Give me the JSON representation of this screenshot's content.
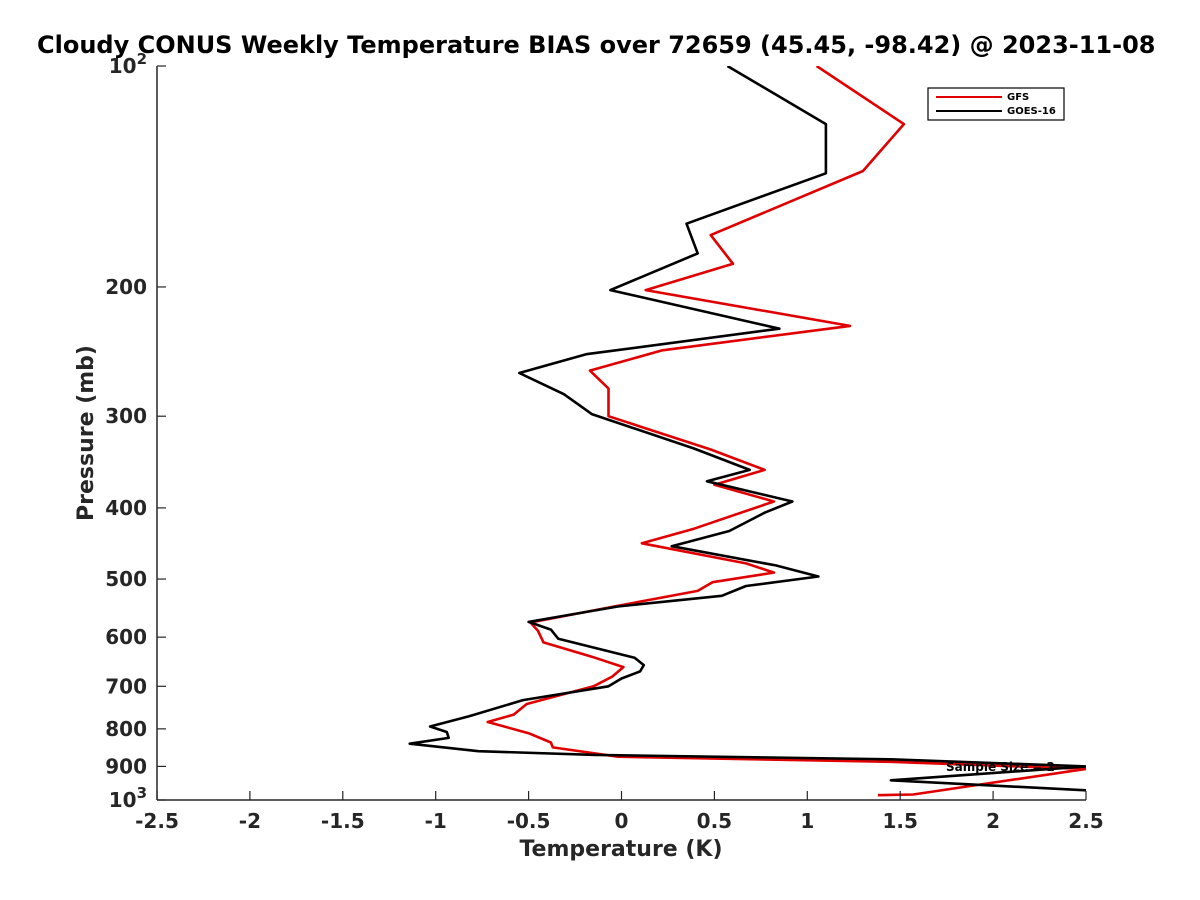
{
  "chart_data": {
    "type": "line",
    "title": "Cloudy CONUS Weekly Temperature BIAS over 72659 (45.45, -98.42) @ 2023-11-08",
    "xlabel": "Temperature (K)",
    "ylabel": "Pressure (mb)",
    "xlim": [
      -2.5,
      2.5
    ],
    "ylim": [
      100,
      1000
    ],
    "y_scale": "log",
    "y_reversed": true,
    "grid": false,
    "legend_position": "top-right",
    "x_ticks": [
      -2.5,
      -2,
      -1.5,
      -1,
      -0.5,
      0,
      0.5,
      1,
      1.5,
      2,
      2.5
    ],
    "x_tick_labels": [
      "-2.5",
      "-2",
      "-1.5",
      "-1",
      "-0.5",
      "0",
      "0.5",
      "1",
      "1.5",
      "2",
      "2.5"
    ],
    "y_ticks": [
      {
        "value": 100,
        "base": "10",
        "exp": "2"
      },
      {
        "value": 200,
        "label": "200"
      },
      {
        "value": 300,
        "label": "300"
      },
      {
        "value": 400,
        "label": "400"
      },
      {
        "value": 500,
        "label": "500"
      },
      {
        "value": 600,
        "label": "600"
      },
      {
        "value": 700,
        "label": "700"
      },
      {
        "value": 800,
        "label": "800"
      },
      {
        "value": 900,
        "label": "900"
      },
      {
        "value": 1000,
        "base": "10",
        "exp": "3"
      }
    ],
    "series": [
      {
        "name": "GFS",
        "color": "#e00000",
        "points": [
          [
            1.05,
            100
          ],
          [
            1.52,
            120
          ],
          [
            1.3,
            139
          ],
          [
            0.48,
            170
          ],
          [
            0.6,
            186
          ],
          [
            0.13,
            202
          ],
          [
            1.23,
            226
          ],
          [
            0.22,
            244
          ],
          [
            -0.17,
            260
          ],
          [
            -0.07,
            275
          ],
          [
            -0.07,
            300
          ],
          [
            0.48,
            333
          ],
          [
            0.77,
            355
          ],
          [
            0.5,
            372
          ],
          [
            0.82,
            392
          ],
          [
            0.39,
            427
          ],
          [
            0.11,
            447
          ],
          [
            0.67,
            476
          ],
          [
            0.82,
            490
          ],
          [
            0.49,
            505
          ],
          [
            0.41,
            519
          ],
          [
            -0.04,
            545
          ],
          [
            -0.49,
            573
          ],
          [
            -0.45,
            588
          ],
          [
            -0.42,
            610
          ],
          [
            -0.16,
            638
          ],
          [
            0.01,
            659
          ],
          [
            -0.05,
            679
          ],
          [
            -0.15,
            700
          ],
          [
            -0.51,
            740
          ],
          [
            -0.58,
            765
          ],
          [
            -0.72,
            783
          ],
          [
            -0.5,
            811
          ],
          [
            -0.38,
            835
          ],
          [
            -0.37,
            848
          ],
          [
            -0.02,
            873
          ],
          [
            1.45,
            887
          ],
          [
            2.5,
            907
          ],
          [
            1.57,
            983
          ],
          [
            1.38,
            985
          ]
        ]
      },
      {
        "name": "GOES-16",
        "color": "#000000",
        "points": [
          [
            0.57,
            100
          ],
          [
            1.1,
            120
          ],
          [
            1.1,
            140
          ],
          [
            0.35,
            164
          ],
          [
            0.41,
            180
          ],
          [
            -0.06,
            202
          ],
          [
            0.85,
            228
          ],
          [
            -0.19,
            247
          ],
          [
            -0.55,
            262
          ],
          [
            -0.31,
            280
          ],
          [
            -0.16,
            298
          ],
          [
            0.39,
            332
          ],
          [
            0.69,
            355
          ],
          [
            0.46,
            368
          ],
          [
            0.92,
            392
          ],
          [
            0.77,
            406
          ],
          [
            0.58,
            430
          ],
          [
            0.27,
            451
          ],
          [
            0.83,
            479
          ],
          [
            1.06,
            496
          ],
          [
            0.67,
            511
          ],
          [
            0.54,
            527
          ],
          [
            -0.02,
            545
          ],
          [
            -0.5,
            572
          ],
          [
            -0.38,
            586
          ],
          [
            -0.34,
            603
          ],
          [
            0.07,
            640
          ],
          [
            0.12,
            655
          ],
          [
            0.1,
            668
          ],
          [
            0.0,
            683
          ],
          [
            -0.07,
            700
          ],
          [
            -0.53,
            731
          ],
          [
            -0.82,
            769
          ],
          [
            -1.03,
            794
          ],
          [
            -0.94,
            808
          ],
          [
            -0.93,
            823
          ],
          [
            -1.14,
            838
          ],
          [
            -0.77,
            858
          ],
          [
            -0.14,
            868
          ],
          [
            1.45,
            880
          ],
          [
            2.5,
            900
          ],
          [
            1.45,
            940
          ],
          [
            2.5,
            970
          ]
        ]
      }
    ],
    "annotations": [
      "Sample Size = 2"
    ]
  },
  "legend": {
    "items": [
      {
        "label": "GFS",
        "color": "#e00000"
      },
      {
        "label": "GOES-16",
        "color": "#000000"
      }
    ]
  }
}
